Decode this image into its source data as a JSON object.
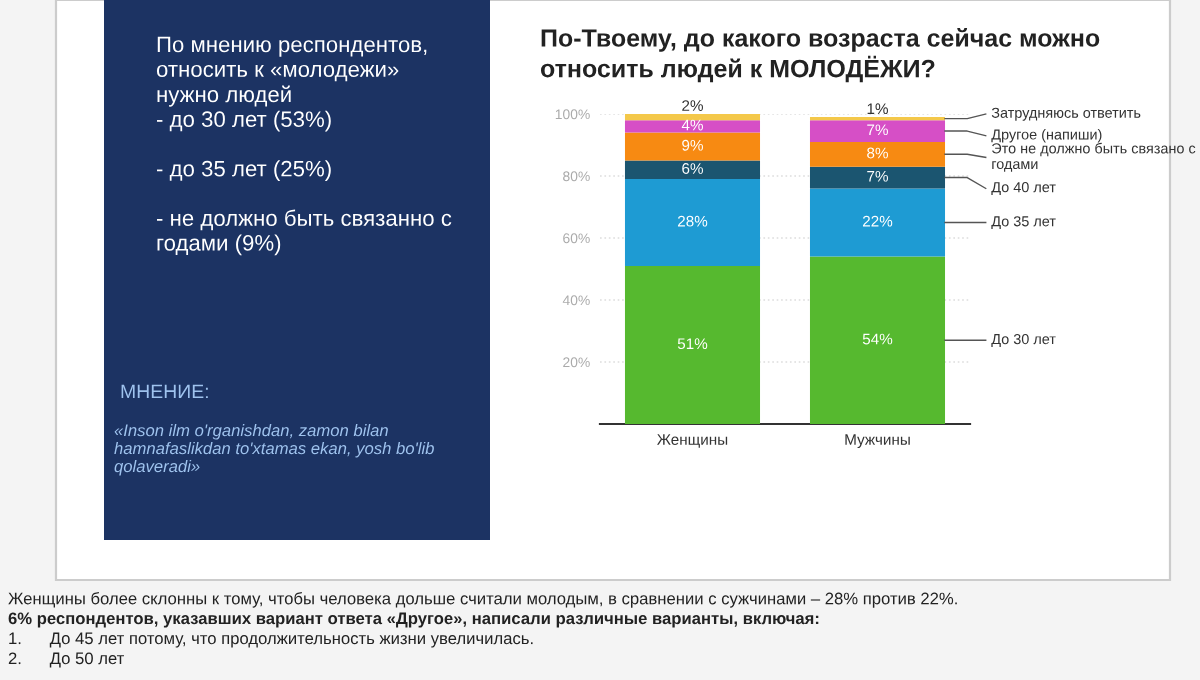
{
  "chart_data": {
    "type": "bar",
    "stacked": true,
    "title": "По-Твоему, до какого возраста сейчас можно относить людей к МОЛОДЁЖИ?",
    "categories": [
      "Женщины",
      "Мужчины"
    ],
    "series": [
      {
        "name": "До 30 лет",
        "color": "#56b92f",
        "values": [
          51,
          54
        ],
        "value_labels": [
          "51%",
          "54%"
        ]
      },
      {
        "name": "До 35 лет",
        "color": "#1e9bd3",
        "values": [
          28,
          22
        ],
        "value_labels": [
          "28%",
          "22%"
        ]
      },
      {
        "name": "До 40 лет",
        "color": "#1b5570",
        "values": [
          6,
          7
        ],
        "value_labels": [
          "6%",
          "7%"
        ]
      },
      {
        "name": "Это не должно быть связано с годами",
        "color": "#f78a12",
        "values": [
          9,
          8
        ],
        "value_labels": [
          "9%",
          "8%"
        ]
      },
      {
        "name": "Другое (напиши)",
        "color": "#d64fc6",
        "values": [
          4,
          7
        ],
        "value_labels": [
          "4%",
          "7%"
        ]
      },
      {
        "name": "Затрудняюсь ответить",
        "color": "#f4c84a",
        "values": [
          2,
          1
        ],
        "value_labels": [
          "2%",
          "1%"
        ]
      }
    ],
    "ylim": [
      0,
      100
    ],
    "yticks": [
      {
        "value": 20,
        "label": "20%"
      },
      {
        "value": 40,
        "label": "40%"
      },
      {
        "value": 60,
        "label": "60%"
      },
      {
        "value": 80,
        "label": "80%"
      },
      {
        "value": 100,
        "label": "100%"
      }
    ],
    "grid": "y",
    "legend": "right",
    "annotations": [
      "По мнению респондентов,\nотносить к «молодежи»\nнужно людей\n- до 30 лет (53%)\n\n- до 35 лет (25%)\n\n- не должно быть связанно с\nгодами (9%)",
      "МНЕНИЕ:",
      "«Inson ilm o'rganishdan, zamon bilan\nhamnafaslikdan to'xtamas ekan, yosh bo'lib\nqolaveradi»",
      "Женщины более склонны к тому, чтобы человека дольше считали молодым, в сравнении с сужчинами – 28% против 22%.",
      "6% респондентов, указавших вариант ответа «Другое», написали различные варианты, включая:",
      "1.      До 45 лет потому, что продолжительность жизни увеличилась.",
      "2.      До 50 лет"
    ]
  }
}
